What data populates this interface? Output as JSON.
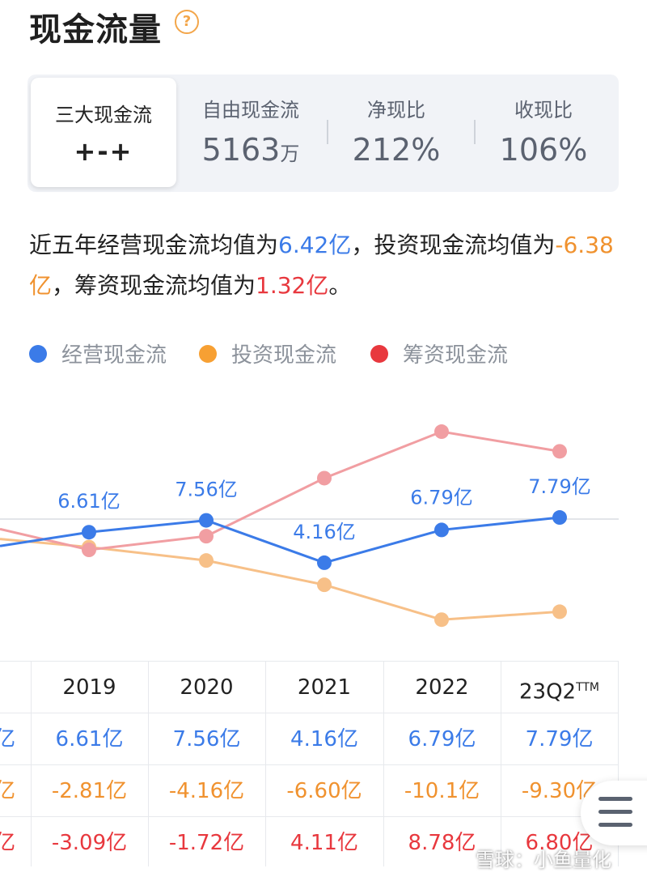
{
  "header": {
    "title": "现金流量",
    "help_icon": "?"
  },
  "summary": {
    "selected": {
      "label": "三大现金流",
      "value": "+-+"
    },
    "metrics": [
      {
        "label": "自由现金流",
        "value": "5163",
        "unit": "万"
      },
      {
        "label": "净现比",
        "value": "212%"
      },
      {
        "label": "收现比",
        "value": "106%"
      }
    ]
  },
  "description": {
    "p1": "近五年经营现金流均值为",
    "v1": "6.42亿",
    "p2": "，投资现金流均值为",
    "v2": "-6.38亿",
    "p3": "，筹资现金流均值为",
    "v3": "1.32亿",
    "p4": "。"
  },
  "legend": [
    {
      "label": "经营现金流",
      "color": "#3b7be8"
    },
    {
      "label": "投资现金流",
      "color": "#f7a033"
    },
    {
      "label": "筹资现金流",
      "color": "#e8383e"
    }
  ],
  "chart_data": {
    "type": "line",
    "categories": [
      "2019",
      "2020",
      "2021",
      "2022",
      "23Q2TTM"
    ],
    "series": [
      {
        "name": "经营现金流",
        "values": [
          6.61,
          7.56,
          4.16,
          6.79,
          7.79
        ],
        "labels": [
          "6.61亿",
          "7.56亿",
          "4.16亿",
          "6.79亿",
          "7.79亿"
        ]
      },
      {
        "name": "投资现金流",
        "values": [
          -2.81,
          -4.16,
          -6.6,
          -10.1,
          -9.3
        ]
      },
      {
        "name": "筹资现金流",
        "values": [
          -3.09,
          -1.72,
          4.11,
          8.78,
          6.8
        ]
      }
    ]
  },
  "table": {
    "headers": [
      "2019",
      "2020",
      "2021",
      "2022",
      "23Q2",
      "TTM"
    ],
    "rows": [
      {
        "color": "blue",
        "cells": [
          "6.61亿",
          "7.56亿",
          "4.16亿",
          "6.79亿",
          "7.79亿"
        ]
      },
      {
        "color": "orange",
        "cells": [
          "-2.81亿",
          "-4.16亿",
          "-6.60亿",
          "-10.1亿",
          "-9.30亿"
        ]
      },
      {
        "color": "red",
        "cells": [
          "-3.09亿",
          "-1.72亿",
          "4.11亿",
          "8.78亿",
          "6.80亿"
        ]
      }
    ],
    "left_partial": [
      "亿",
      "亿",
      "亿"
    ]
  },
  "watermark": "雪球：小鱼量化"
}
